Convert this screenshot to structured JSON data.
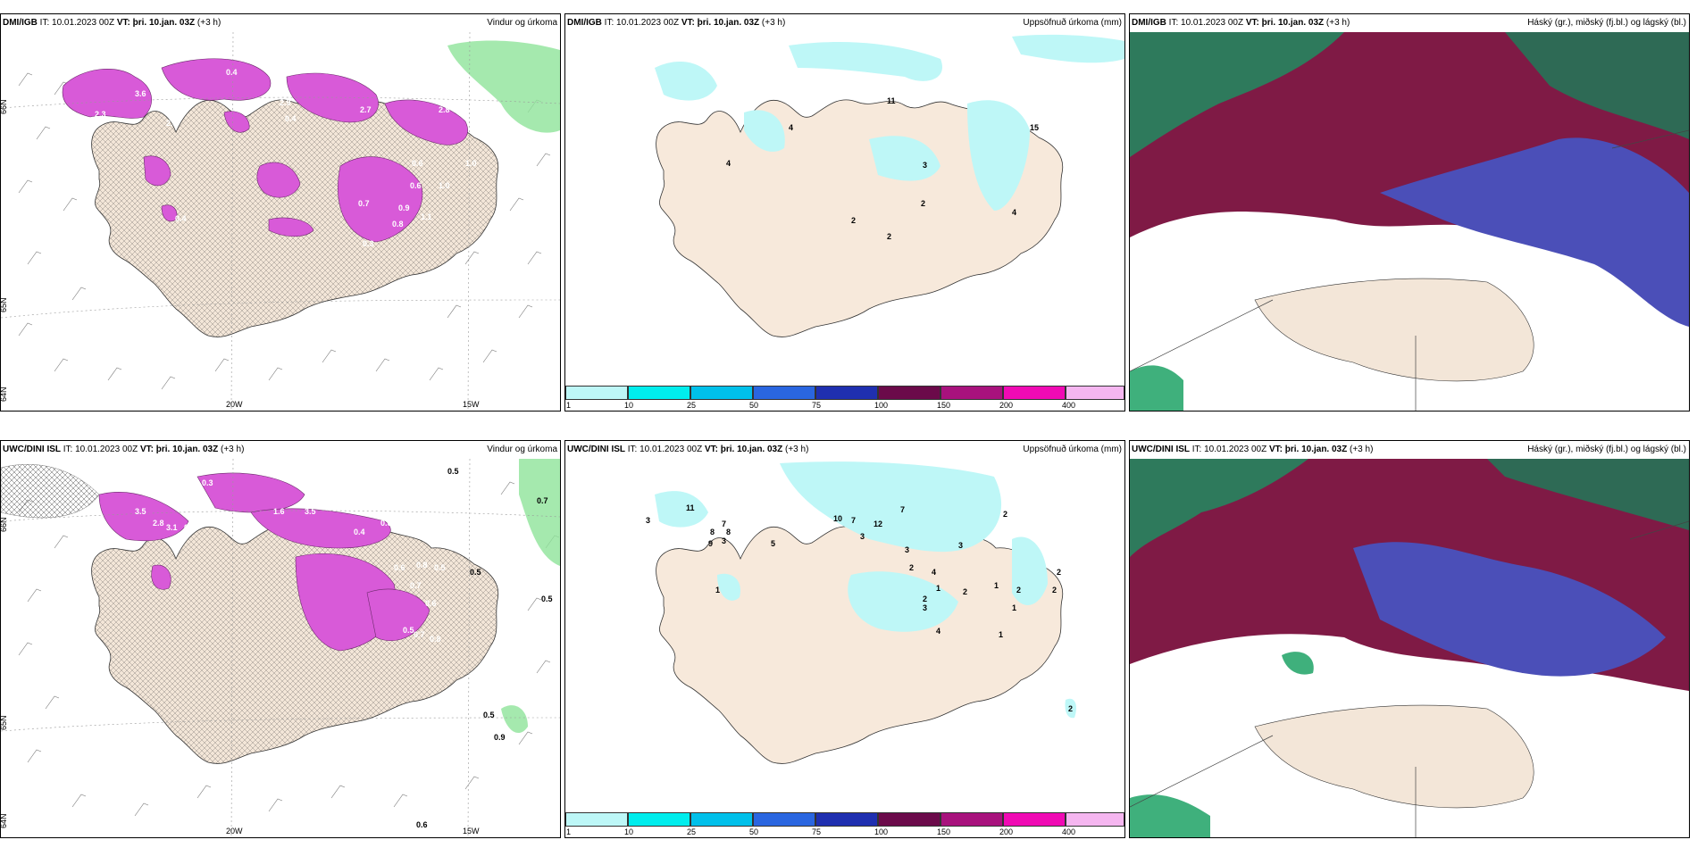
{
  "panels": {
    "p1": {
      "model": "DMI/IGB",
      "it": "IT: 10.01.2023 00Z",
      "vt": "VT: þri. 10.jan. 03Z",
      "lead": "(+3 h)",
      "product": "Vindur og úrkoma",
      "grid": {
        "lat_top": "66N",
        "lat_mid": "65N",
        "lat_bot": "64N",
        "lon1": "20W",
        "lon2": "15W"
      },
      "values": [
        "0.4",
        "3.6",
        "2.1",
        "2.9",
        "2.3",
        "2.7",
        "2.8",
        "0.4",
        "0.6",
        "1.0",
        "0.6",
        "1.0",
        "0.7",
        "0.9",
        "0.8",
        "1.1",
        "0.4",
        "0.3"
      ]
    },
    "p2": {
      "model": "DMI/IGB",
      "it": "IT: 10.01.2023 00Z",
      "vt": "VT: þri. 10.jan. 03Z",
      "lead": "(+3 h)",
      "product": "Uppsöfnuð úrkoma (mm)",
      "values": [
        "11",
        "4",
        "4",
        "3",
        "2",
        "2",
        "2",
        "4",
        "15"
      ]
    },
    "p3": {
      "model": "DMI/IGB",
      "it": "IT: 10.01.2023 00Z",
      "vt": "VT: þri. 10.jan. 03Z",
      "lead": "(+3 h)",
      "product": "Háský (gr.), miðský (fj.bl.) og lágský (bl.)"
    },
    "p4": {
      "model": "UWC/DINI ISL",
      "it": "IT: 10.01.2023 00Z",
      "vt": "VT: þri. 10.jan. 03Z",
      "lead": "(+3 h)",
      "product": "Vindur og úrkoma",
      "grid": {
        "lat_top": "66N",
        "lat_mid": "65N",
        "lat_bot": "64N",
        "lon1": "20W",
        "lon2": "15W"
      },
      "values": [
        "0.3",
        "1.6",
        "1.0",
        "0.6",
        "2.2",
        "0.5",
        "0.7",
        "3.5",
        "3.1",
        "0.4",
        "2.8",
        "1.6",
        "3.5",
        "1.4",
        "0.6",
        "0.4",
        "0.6",
        "0.8",
        "0.5",
        "0.7",
        "0.6",
        "0.5",
        "0.7",
        "0.5",
        "0.8",
        "0.5",
        "0.5",
        "0.9",
        "0.6"
      ]
    },
    "p5": {
      "model": "UWC/DINI ISL",
      "it": "IT: 10.01.2023 00Z",
      "vt": "VT: þri. 10.jan. 03Z",
      "lead": "(+3 h)",
      "product": "Uppsöfnuð úrkoma (mm)",
      "values": [
        "3",
        "11",
        "7",
        "8",
        "3",
        "8",
        "9",
        "5",
        "10",
        "7",
        "12",
        "3",
        "1",
        "7",
        "3",
        "2",
        "4",
        "3",
        "2",
        "1",
        "2",
        "1",
        "2",
        "3",
        "1",
        "2",
        "2",
        "2",
        "1",
        "4",
        "2"
      ]
    },
    "p6": {
      "model": "UWC/DINI ISL",
      "it": "IT: 10.01.2023 00Z",
      "vt": "VT: þri. 10.jan. 03Z",
      "lead": "(+3 h)",
      "product": "Háský (gr.), miðský (fj.bl.) og lágský (bl.)"
    }
  },
  "colorbar": {
    "ticks": [
      "1",
      "10",
      "25",
      "50",
      "75",
      "100",
      "150",
      "200",
      "400"
    ],
    "colors": [
      "#bdf7f7",
      "#00eded",
      "#00c0ea",
      "#2a66e0",
      "#1f2fb0",
      "#6b0a4a",
      "#a8127d",
      "#f00ab4",
      "#f5b6f0"
    ]
  },
  "colors": {
    "land": "#f7e9db",
    "precip_light": "#bef7f7",
    "snow": "#d85ad8",
    "snow_dark": "#8a2d8a",
    "high_cloud": "#2e8f5c",
    "mid_cloud": "#7f1a45",
    "low_cloud": "#4b4fb8"
  }
}
